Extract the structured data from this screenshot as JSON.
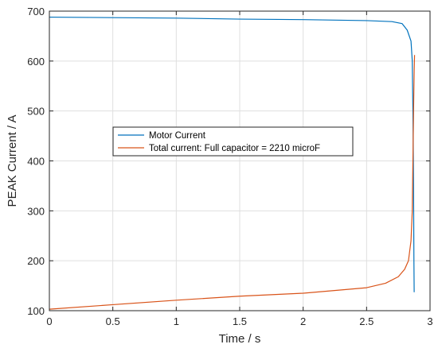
{
  "chart_data": {
    "type": "line",
    "title": "",
    "xlabel": "Time / s",
    "ylabel": "PEAK Current / A",
    "xlim": [
      0,
      3
    ],
    "ylim": [
      100,
      700
    ],
    "xticks": [
      0,
      0.5,
      1,
      1.5,
      2,
      2.5,
      3
    ],
    "yticks": [
      100,
      200,
      300,
      400,
      500,
      600,
      700
    ],
    "xtick_labels": [
      "0",
      "0.5",
      "1",
      "1.5",
      "2",
      "2.5",
      "3"
    ],
    "ytick_labels": [
      "100",
      "200",
      "300",
      "400",
      "500",
      "600",
      "700"
    ],
    "grid": true,
    "legend_position": "center-left",
    "series": [
      {
        "name": "Motor Current",
        "color": "#0072bd",
        "x": [
          0,
          0.5,
          1.0,
          1.5,
          2.0,
          2.5,
          2.7,
          2.78,
          2.82,
          2.85,
          2.86,
          2.865,
          2.87,
          2.873,
          2.875
        ],
        "y": [
          688,
          687,
          686,
          684,
          683,
          681,
          679,
          675,
          662,
          640,
          600,
          500,
          350,
          200,
          137
        ]
      },
      {
        "name": "Total current: Full capacitor = 2210 microF",
        "color": "#d95319",
        "x": [
          0,
          0.5,
          1.0,
          1.5,
          2.0,
          2.5,
          2.65,
          2.75,
          2.8,
          2.83,
          2.85,
          2.86,
          2.865,
          2.87,
          2.875,
          2.878
        ],
        "y": [
          103,
          112,
          121,
          129,
          135,
          146,
          155,
          168,
          183,
          200,
          240,
          300,
          400,
          500,
          580,
          612
        ]
      }
    ]
  }
}
